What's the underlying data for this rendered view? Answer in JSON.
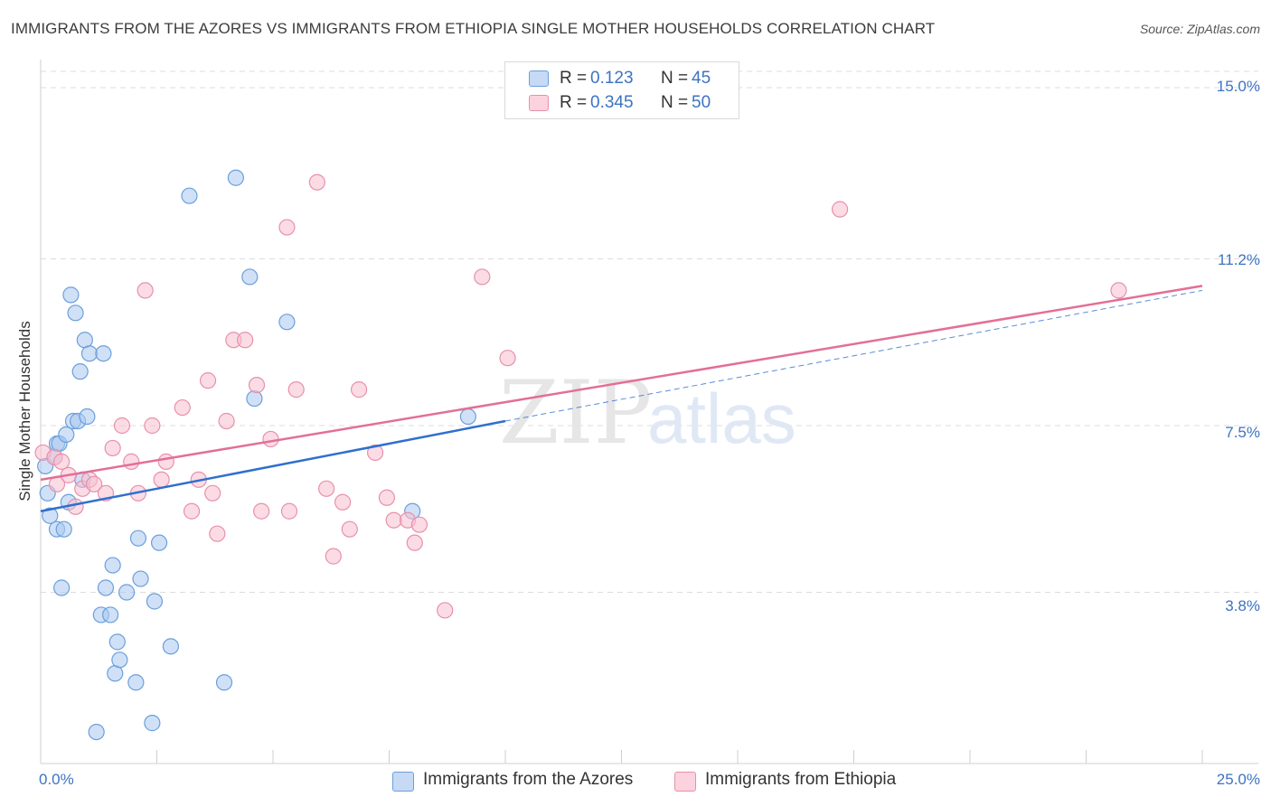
{
  "header": {
    "title": "IMMIGRANTS FROM THE AZORES VS IMMIGRANTS FROM ETHIOPIA SINGLE MOTHER HOUSEHOLDS CORRELATION CHART",
    "source": "Source: ZipAtlas.com"
  },
  "watermark": {
    "zip": "ZIP",
    "atlas": "atlas"
  },
  "colors": {
    "azores_fill": "#a9c8f0",
    "azores_stroke": "#6b9fdc",
    "azores_line": "#2f6fcf",
    "ethiopia_fill": "#f7bfd0",
    "ethiopia_stroke": "#e890ac",
    "ethiopia_line": "#e36f96",
    "grid": "#dcdcdc",
    "accent_text": "#3d73c2"
  },
  "legend_top": {
    "rows": [
      {
        "r_label": "R =",
        "r_value": "0.123",
        "n_label": "N =",
        "n_value": "45"
      },
      {
        "r_label": "R =",
        "r_value": "0.345",
        "n_label": "N =",
        "n_value": "50"
      }
    ]
  },
  "chart_data": {
    "type": "scatter",
    "title": "IMMIGRANTS FROM THE AZORES VS IMMIGRANTS FROM ETHIOPIA SINGLE MOTHER HOUSEHOLDS CORRELATION CHART",
    "xlabel": "",
    "ylabel": "Single Mother Households",
    "xlim": [
      0,
      25
    ],
    "ylim": [
      0,
      15.5
    ],
    "x_tick_labels": [
      "0.0%",
      "25.0%"
    ],
    "y_ticks": [
      3.8,
      7.5,
      11.2,
      15.0
    ],
    "y_tick_labels": [
      "3.8%",
      "7.5%",
      "11.2%",
      "15.0%"
    ],
    "grid": true,
    "legend_position": "bottom",
    "series": [
      {
        "name": "Immigrants from the Azores",
        "R": 0.123,
        "N": 45,
        "trend": {
          "x": [
            0,
            10
          ],
          "y": [
            5.6,
            7.6
          ]
        },
        "trend_extension": {
          "x": [
            10,
            25
          ],
          "y": [
            7.6,
            10.5
          ]
        },
        "points": [
          [
            0.1,
            6.6
          ],
          [
            0.15,
            6.0
          ],
          [
            0.2,
            5.5
          ],
          [
            0.3,
            6.8
          ],
          [
            0.35,
            7.1
          ],
          [
            0.35,
            5.2
          ],
          [
            0.4,
            7.1
          ],
          [
            0.45,
            3.9
          ],
          [
            0.5,
            5.2
          ],
          [
            0.55,
            7.3
          ],
          [
            0.6,
            5.8
          ],
          [
            0.65,
            10.4
          ],
          [
            0.7,
            7.6
          ],
          [
            0.75,
            10.0
          ],
          [
            0.8,
            7.6
          ],
          [
            0.85,
            8.7
          ],
          [
            0.9,
            6.3
          ],
          [
            0.95,
            9.4
          ],
          [
            1.0,
            7.7
          ],
          [
            1.05,
            9.1
          ],
          [
            1.2,
            0.7
          ],
          [
            1.3,
            3.3
          ],
          [
            1.35,
            9.1
          ],
          [
            1.4,
            3.9
          ],
          [
            1.5,
            3.3
          ],
          [
            1.55,
            4.4
          ],
          [
            1.6,
            2.0
          ],
          [
            1.65,
            2.7
          ],
          [
            1.7,
            2.3
          ],
          [
            1.85,
            3.8
          ],
          [
            2.05,
            1.8
          ],
          [
            2.1,
            5.0
          ],
          [
            2.15,
            4.1
          ],
          [
            2.4,
            0.9
          ],
          [
            2.45,
            3.6
          ],
          [
            2.55,
            4.9
          ],
          [
            2.8,
            2.6
          ],
          [
            3.2,
            12.6
          ],
          [
            3.95,
            1.8
          ],
          [
            4.2,
            13.0
          ],
          [
            4.5,
            10.8
          ],
          [
            4.6,
            8.1
          ],
          [
            5.3,
            9.8
          ],
          [
            9.2,
            7.7
          ],
          [
            8.0,
            5.6
          ]
        ]
      },
      {
        "name": "Immigrants from Ethiopia",
        "R": 0.345,
        "N": 50,
        "trend": {
          "x": [
            0,
            25
          ],
          "y": [
            6.3,
            10.6
          ]
        },
        "points": [
          [
            0.05,
            6.9
          ],
          [
            0.3,
            6.8
          ],
          [
            0.35,
            6.2
          ],
          [
            0.45,
            6.7
          ],
          [
            0.6,
            6.4
          ],
          [
            0.75,
            5.7
          ],
          [
            0.9,
            6.1
          ],
          [
            1.05,
            6.3
          ],
          [
            1.15,
            6.2
          ],
          [
            1.4,
            6.0
          ],
          [
            1.55,
            7.0
          ],
          [
            1.75,
            7.5
          ],
          [
            1.95,
            6.7
          ],
          [
            2.1,
            6.0
          ],
          [
            2.25,
            10.5
          ],
          [
            2.4,
            7.5
          ],
          [
            2.6,
            6.3
          ],
          [
            2.7,
            6.7
          ],
          [
            3.05,
            7.9
          ],
          [
            3.25,
            5.6
          ],
          [
            3.4,
            6.3
          ],
          [
            3.6,
            8.5
          ],
          [
            3.7,
            6.0
          ],
          [
            3.8,
            5.1
          ],
          [
            4.0,
            7.6
          ],
          [
            4.15,
            9.4
          ],
          [
            4.4,
            9.4
          ],
          [
            4.65,
            8.4
          ],
          [
            4.75,
            5.6
          ],
          [
            4.95,
            7.2
          ],
          [
            5.3,
            11.9
          ],
          [
            5.35,
            5.6
          ],
          [
            5.5,
            8.3
          ],
          [
            5.95,
            12.9
          ],
          [
            6.15,
            6.1
          ],
          [
            6.3,
            4.6
          ],
          [
            6.5,
            5.8
          ],
          [
            6.65,
            5.2
          ],
          [
            6.85,
            8.3
          ],
          [
            7.2,
            6.9
          ],
          [
            7.45,
            5.9
          ],
          [
            7.6,
            5.4
          ],
          [
            7.9,
            5.4
          ],
          [
            8.05,
            4.9
          ],
          [
            8.15,
            5.3
          ],
          [
            8.7,
            3.4
          ],
          [
            9.5,
            10.8
          ],
          [
            10.05,
            9.0
          ],
          [
            17.2,
            12.3
          ],
          [
            23.2,
            10.5
          ]
        ]
      }
    ]
  }
}
